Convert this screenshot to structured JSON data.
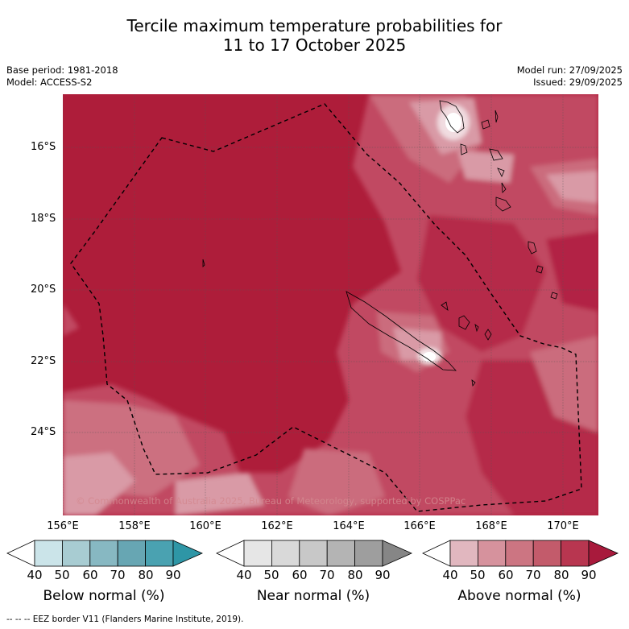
{
  "title_line1": "Tercile maximum temperature probabilities for",
  "title_line2": "11 to 17 October 2025",
  "base_period": "Base period: 1981-2018",
  "model": "Model: ACCESS-S2",
  "model_run": "Model run: 27/09/2025",
  "issued": "Issued: 29/09/2025",
  "copyright": "© Commonwealth of Australia 2025, Bureau of Meteorology, supported by COSPPac",
  "lat_labels": [
    "16°S",
    "18°S",
    "20°S",
    "22°S",
    "24°S"
  ],
  "lon_labels": [
    "156°E",
    "158°E",
    "160°E",
    "162°E",
    "164°E",
    "166°E",
    "168°E",
    "170°E"
  ],
  "colorbars": [
    {
      "title": "Below normal (%)",
      "ticks": [
        "40",
        "50",
        "60",
        "70",
        "80",
        "90"
      ],
      "colors": [
        "#ffffff",
        "#cbe4e9",
        "#a8ccd2",
        "#87b8c2",
        "#67a6b3",
        "#4aa2b1",
        "#2e96a6"
      ]
    },
    {
      "title": "Near normal (%)",
      "ticks": [
        "40",
        "50",
        "60",
        "70",
        "80",
        "90"
      ],
      "colors": [
        "#ffffff",
        "#e6e6e6",
        "#d9d9d9",
        "#c8c8c8",
        "#b4b4b4",
        "#9e9e9e",
        "#868686"
      ]
    },
    {
      "title": "Above normal (%)",
      "ticks": [
        "40",
        "50",
        "60",
        "70",
        "80",
        "90"
      ],
      "colors": [
        "#ffffff",
        "#e1b7bf",
        "#d6929d",
        "#cc7582",
        "#c35b6b",
        "#b83650",
        "#a81a3c"
      ]
    }
  ],
  "footnote": "--  --  -- EEZ border V11 (Flanders Marine Institute, 2019)."
}
